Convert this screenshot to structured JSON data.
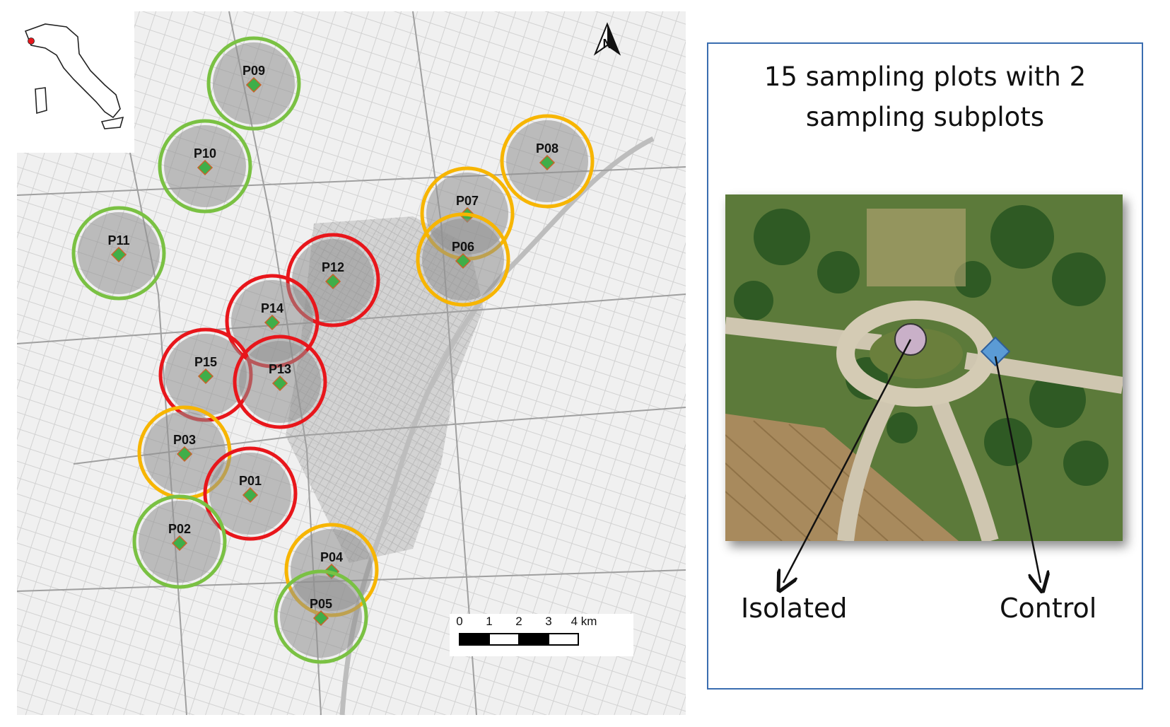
{
  "map": {
    "north_arrow_label": "N",
    "plots": [
      {
        "id": "P09",
        "ring": "green"
      },
      {
        "id": "P10",
        "ring": "green"
      },
      {
        "id": "P11",
        "ring": "green"
      },
      {
        "id": "P08",
        "ring": "orange"
      },
      {
        "id": "P07",
        "ring": "orange"
      },
      {
        "id": "P06",
        "ring": "orange"
      },
      {
        "id": "P12",
        "ring": "red"
      },
      {
        "id": "P14",
        "ring": "red"
      },
      {
        "id": "P15",
        "ring": "red"
      },
      {
        "id": "P13",
        "ring": "red"
      },
      {
        "id": "P03",
        "ring": "orange"
      },
      {
        "id": "P01",
        "ring": "red"
      },
      {
        "id": "P02",
        "ring": "green"
      },
      {
        "id": "P04",
        "ring": "orange"
      },
      {
        "id": "P05",
        "ring": "green"
      }
    ],
    "scale_bar": {
      "ticks": [
        "0",
        "1",
        "2",
        "3",
        "4 km"
      ]
    },
    "ring_colors": {
      "green": "#7ac143",
      "orange": "#f7b500",
      "red": "#e8161b"
    },
    "marker_color": "#3fae49"
  },
  "panel": {
    "title": "15 sampling plots with 2 sampling subplots",
    "isolated_label": "Isolated",
    "control_label": "Control",
    "isolated_marker_color": "#c9b0c8",
    "control_marker_color": "#5b9bd5",
    "border_color": "#3a6db0"
  }
}
